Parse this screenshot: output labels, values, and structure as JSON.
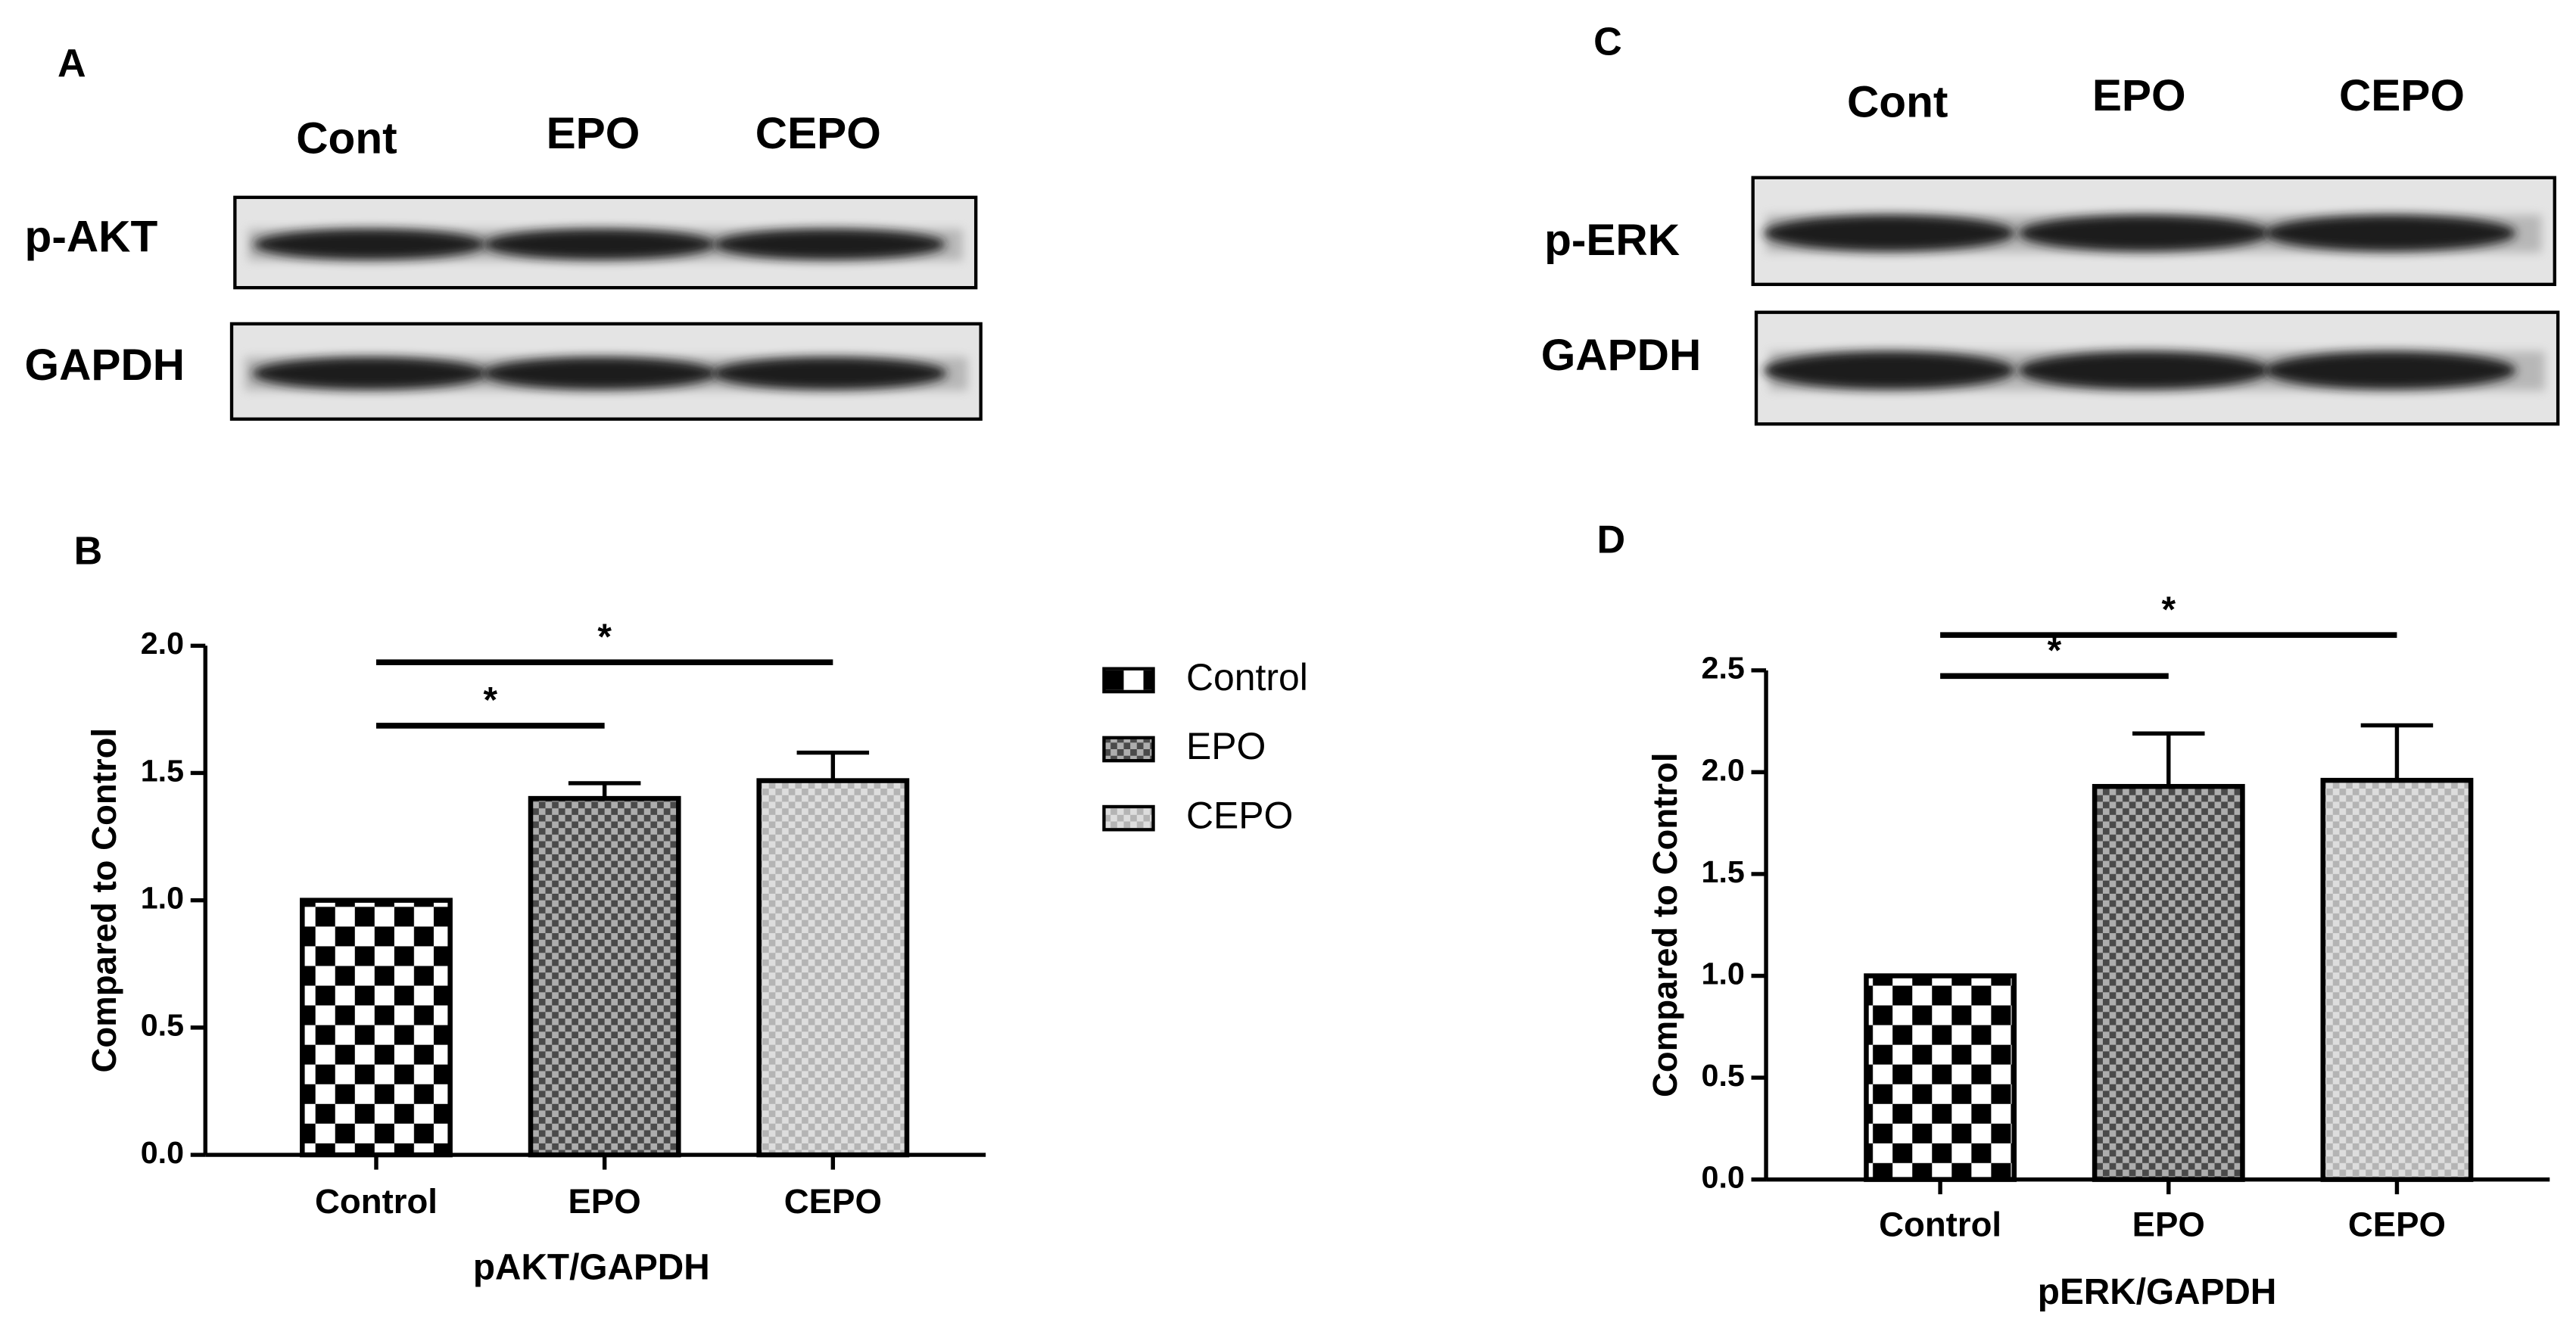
{
  "blots": [
    {
      "label": "A",
      "lanes": [
        "Cont",
        "EPO",
        "CEPO"
      ],
      "rows": [
        "p-AKT",
        "GAPDH"
      ]
    },
    {
      "label": "C",
      "lanes": [
        "Cont",
        "EPO",
        "CEPO"
      ],
      "rows": [
        "p-ERK",
        "GAPDH"
      ]
    }
  ],
  "chart_data": [
    {
      "type": "bar",
      "panel": "B",
      "categories": [
        "Control",
        "EPO",
        "CEPO"
      ],
      "values": [
        1.0,
        1.4,
        1.47
      ],
      "errors": [
        0,
        0.06,
        0.11
      ],
      "colors": [
        "#000000",
        "#4a4a4a",
        "#b5b5b5"
      ],
      "ylabel": "Compared to Control",
      "xlabel": "pAKT/GAPDH",
      "ylim": [
        0,
        2
      ],
      "yticks": [
        {
          "value": 0,
          "label": "0.0"
        },
        0.5,
        {
          "value": 1,
          "label": "1.0"
        },
        1.5,
        {
          "value": 2,
          "label": "2.0"
        }
      ],
      "legend": true,
      "annotations": [
        {
          "text": "*",
          "from": "Control",
          "to": "EPO"
        },
        {
          "text": "*",
          "from": "Control",
          "to": "CEPO"
        }
      ]
    },
    {
      "type": "bar",
      "panel": "D",
      "categories": [
        "Control",
        "EPO",
        "CEPO"
      ],
      "values": [
        1.0,
        1.93,
        1.96
      ],
      "errors": [
        0,
        0.26,
        0.27
      ],
      "colors": [
        "#000000",
        "#4a4a4a",
        "#b5b5b5"
      ],
      "ylabel": "Compared to Control",
      "xlabel": "pERK/GAPDH",
      "ylim": [
        0,
        2.5
      ],
      "yticks": [
        {
          "value": 0,
          "label": "0.0"
        },
        0.5,
        {
          "value": 1,
          "label": "1.0"
        },
        1.5,
        {
          "value": 2,
          "label": "2.0"
        },
        2.5
      ],
      "legend": false,
      "annotations": [
        {
          "text": "*",
          "from": "Control",
          "to": "EPO"
        },
        {
          "text": "*",
          "from": "Control",
          "to": "CEPO"
        }
      ]
    }
  ]
}
